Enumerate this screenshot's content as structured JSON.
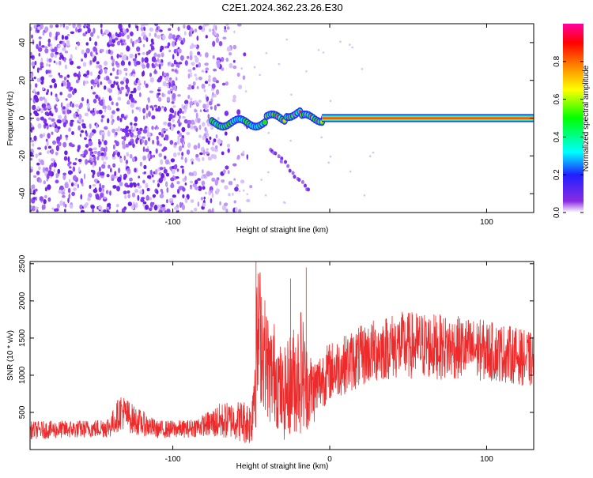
{
  "title": "C2E1.2024.362.23.26.E30",
  "colors": {
    "snr_line": "#ee2a2a",
    "spectrogram_noise": "#7b2ff0",
    "spectrogram_line": "#ff3a2a",
    "plot_border": "#000000"
  },
  "chart_data": [
    {
      "type": "heatmap",
      "title": "C2E1.2024.362.23.26.E30",
      "xlabel": "Height of straight line (km)",
      "ylabel": "Frequency (Hz)",
      "xlim": [
        -191,
        130
      ],
      "ylim": [
        -50,
        50
      ],
      "x_ticks": [
        -100,
        0,
        100
      ],
      "x_tick_labels": [
        "-100",
        "",
        "100"
      ],
      "y_ticks": [
        -40,
        -20,
        0,
        20,
        40
      ],
      "y_tick_labels": [
        "-40",
        "-20",
        "0",
        "20",
        "40"
      ],
      "colorbar": {
        "label": "Normalized spectral amplitude",
        "range": [
          0,
          1
        ],
        "ticks": [
          0.0,
          0.2,
          0.4,
          0.6,
          0.8
        ],
        "tick_labels": [
          "0.0",
          "0.2",
          "0.4",
          "0.6",
          "0.8"
        ],
        "colormap": [
          "#ffffff",
          "#8a2be2",
          "#0000ff",
          "#00ffff",
          "#00ff00",
          "#ffff00",
          "#ff8000",
          "#ff0000",
          "#ff00a0"
        ]
      },
      "features": [
        {
          "name": "broadband noise",
          "x_range": [
            -191,
            -60
          ],
          "y_range": [
            -50,
            50
          ],
          "amplitude": 0.15
        },
        {
          "name": "carrier line",
          "x_range": [
            -75,
            130
          ],
          "y_center": 0,
          "amplitude": 1.0
        },
        {
          "name": "drifting trace",
          "points": [
            [
              -38,
              -17
            ],
            [
              -30,
              -22
            ],
            [
              -20,
              -32
            ],
            [
              -12,
              -40
            ]
          ],
          "amplitude": 0.2
        }
      ]
    },
    {
      "type": "line",
      "xlabel": "Height of straight line (km)",
      "ylabel": "SNR (10 * v/v)",
      "xlim": [
        -191,
        130
      ],
      "ylim": [
        0,
        2530
      ],
      "x_ticks": [
        -100,
        0,
        100
      ],
      "x_tick_labels": [
        "-100",
        "0",
        "100"
      ],
      "y_ticks": [
        500,
        1000,
        1500,
        2000,
        2500
      ],
      "y_tick_labels": [
        "500",
        "1000",
        "1500",
        "2000",
        "2500"
      ],
      "series": [
        {
          "x": [
            -190,
            -170,
            -150,
            -140,
            -133,
            -125,
            -110,
            -90,
            -80,
            -70,
            -62,
            -55,
            -50,
            -47,
            -45,
            -42,
            -38,
            -35,
            -30,
            -25,
            -20,
            -18,
            -15,
            -10,
            -5,
            0,
            5,
            10,
            15,
            20,
            25,
            30,
            35,
            40,
            45,
            50,
            55,
            60,
            65,
            70,
            75,
            80,
            85,
            90,
            95,
            100,
            105,
            110,
            115,
            120,
            125,
            130
          ],
          "mean": [
            260,
            270,
            280,
            310,
            520,
            400,
            270,
            280,
            330,
            380,
            400,
            380,
            350,
            1200,
            1600,
            1350,
            1000,
            1050,
            700,
            900,
            1000,
            1100,
            850,
            800,
            950,
            1050,
            1100,
            1150,
            1200,
            1250,
            1300,
            1340,
            1370,
            1390,
            1400,
            1400,
            1400,
            1400,
            1390,
            1380,
            1370,
            1370,
            1360,
            1350,
            1340,
            1330,
            1310,
            1300,
            1280,
            1260,
            1220,
            1200
          ],
          "spread": [
            120,
            120,
            120,
            150,
            250,
            200,
            120,
            120,
            150,
            250,
            250,
            300,
            300,
            900,
            1000,
            800,
            700,
            700,
            600,
            700,
            800,
            900,
            600,
            450,
            400,
            400,
            400,
            400,
            420,
            420,
            420,
            440,
            440,
            450,
            460,
            460,
            460,
            460,
            450,
            440,
            440,
            430,
            430,
            420,
            420,
            410,
            400,
            400,
            390,
            380,
            380,
            370
          ]
        }
      ]
    }
  ]
}
